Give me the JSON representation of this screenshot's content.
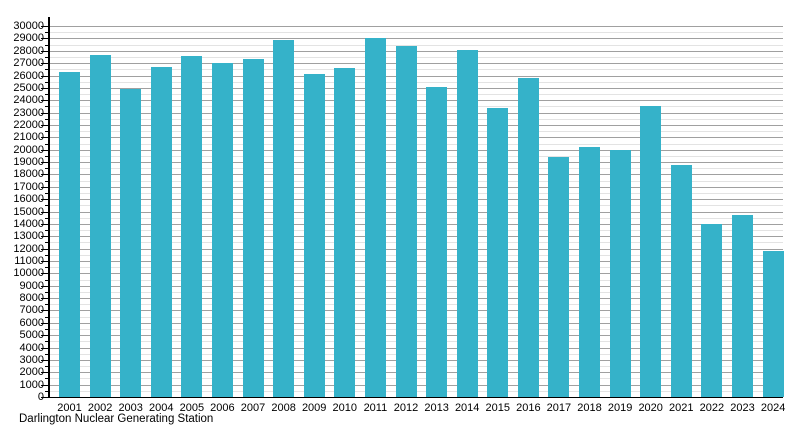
{
  "chart_data": {
    "type": "bar",
    "title": "",
    "caption": "Darlington Nuclear Generating Station",
    "categories": [
      "2001",
      "2002",
      "2003",
      "2004",
      "2005",
      "2006",
      "2007",
      "2008",
      "2009",
      "2010",
      "2011",
      "2012",
      "2013",
      "2014",
      "2015",
      "2016",
      "2017",
      "2018",
      "2019",
      "2020",
      "2021",
      "2022",
      "2023",
      "2024"
    ],
    "values": [
      26250,
      27650,
      24950,
      26650,
      27550,
      27000,
      27300,
      28900,
      26100,
      26600,
      29000,
      28400,
      25100,
      28050,
      23400,
      25800,
      19400,
      20200,
      19950,
      23550,
      18800,
      14000,
      14700,
      11800
    ],
    "xlabel": "",
    "ylabel": "",
    "ylim": [
      0,
      30000
    ],
    "ytick_major_interval": 1000,
    "ytick_minor_interval": 500,
    "yticks": [
      0,
      1000,
      2000,
      3000,
      4000,
      5000,
      6000,
      7000,
      8000,
      9000,
      10000,
      11000,
      12000,
      13000,
      14000,
      15000,
      16000,
      17000,
      18000,
      19000,
      20000,
      21000,
      22000,
      23000,
      24000,
      25000,
      26000,
      27000,
      28000,
      29000,
      30000
    ],
    "grid": "horizontal",
    "legend": "none",
    "colors": {
      "bar": "#35b2c9",
      "grid_major": "#a0a0a0",
      "grid_minor": "#e3e3e3",
      "axis": "#000000",
      "text": "#000000"
    }
  }
}
